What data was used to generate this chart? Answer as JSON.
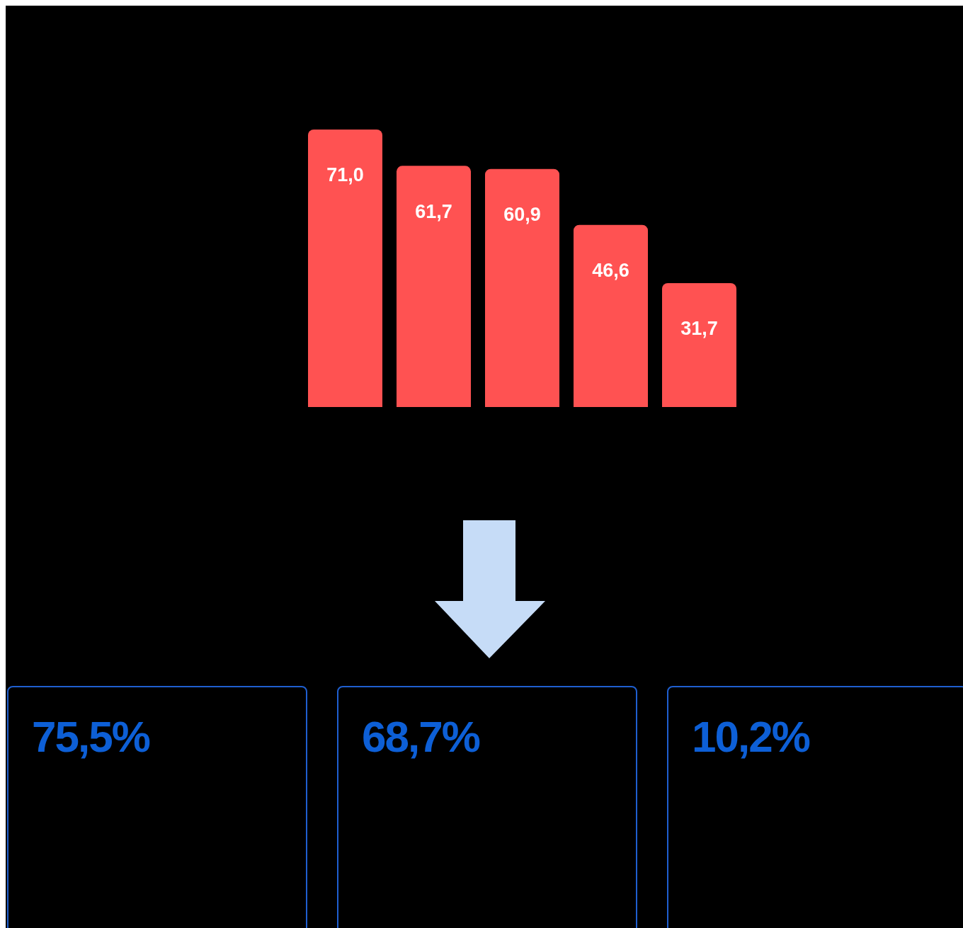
{
  "chart_data": [
    {
      "type": "bar",
      "categories": [
        null,
        null,
        null,
        null,
        null
      ],
      "values": [
        71.0,
        61.7,
        60.9,
        46.6,
        31.7
      ],
      "value_labels": [
        "71,0",
        "61,7",
        "60,9",
        "46,6",
        "31,7"
      ],
      "color": "#ff5252"
    },
    {
      "type": "other",
      "annotations": [
        "75,5%",
        "68,7%",
        "10,2%"
      ]
    }
  ]
}
